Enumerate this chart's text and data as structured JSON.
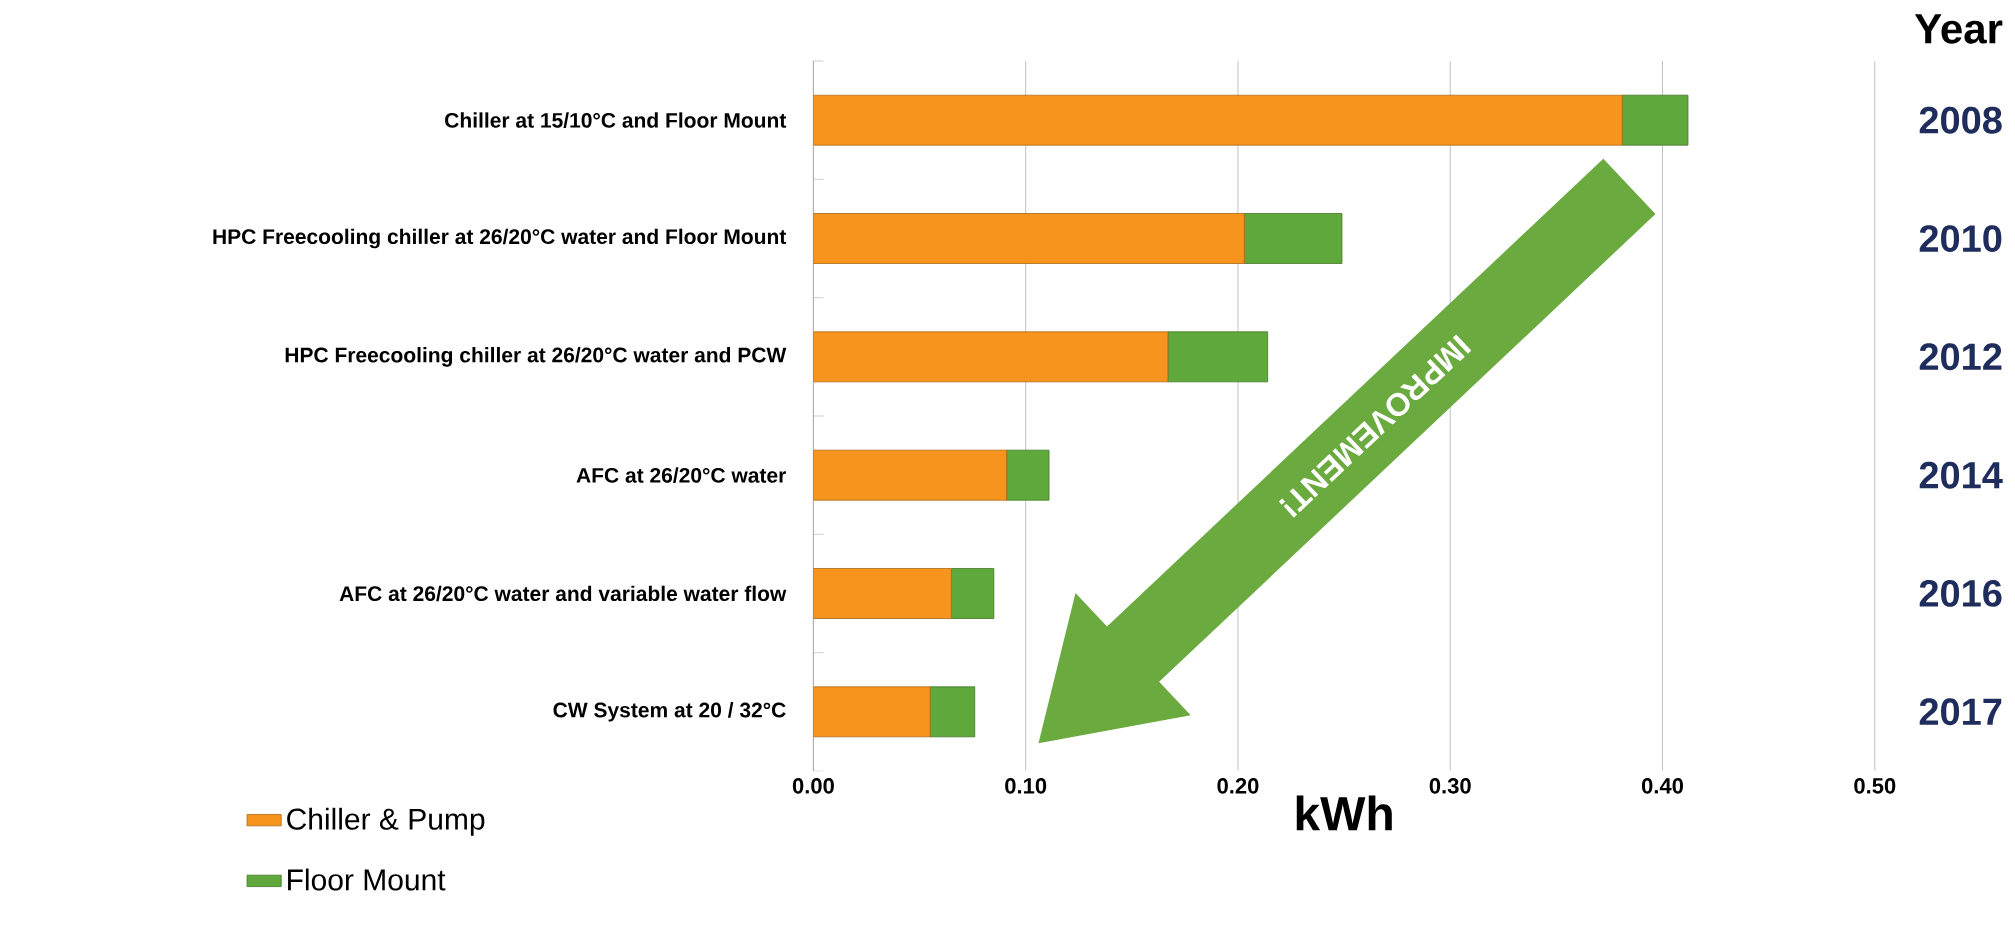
{
  "chart_data": {
    "type": "bar",
    "orientation": "horizontal",
    "stacked": true,
    "categories": [
      "Chiller at 15/10°C and Floor Mount",
      "HPC Freecooling chiller at 26/20°C water and Floor Mount",
      "HPC Freecooling chiller at 26/20°C water and PCW",
      "AFC at 26/20°C water",
      "AFC at 26/20°C water  and variable water flow",
      "CW System at 20 / 32°C"
    ],
    "series": [
      {
        "name": "Chiller & Pump",
        "color": "#f7941d",
        "values": [
          0.381,
          0.203,
          0.167,
          0.091,
          0.065,
          0.055
        ]
      },
      {
        "name": "Floor Mount",
        "color": "#5fa83b",
        "values": [
          0.031,
          0.046,
          0.047,
          0.02,
          0.02,
          0.021
        ]
      }
    ],
    "xlabel": "kWh",
    "xlim": [
      0,
      0.5
    ],
    "xticks": [
      {
        "value": 0,
        "label": "0.00"
      },
      {
        "value": 0.1,
        "label": "0.10"
      },
      {
        "value": 0.2,
        "label": "0.20"
      },
      {
        "value": 0.3,
        "label": "0.30"
      },
      {
        "value": 0.4,
        "label": "0.40"
      },
      {
        "value": 0.5,
        "label": "0.50"
      }
    ],
    "grid": "x",
    "legend": "bottom left",
    "annotations": [
      "Year",
      "2008",
      "2010",
      "2012",
      "2014",
      "2016",
      "2017",
      "IMPROVEMENT!"
    ]
  }
}
